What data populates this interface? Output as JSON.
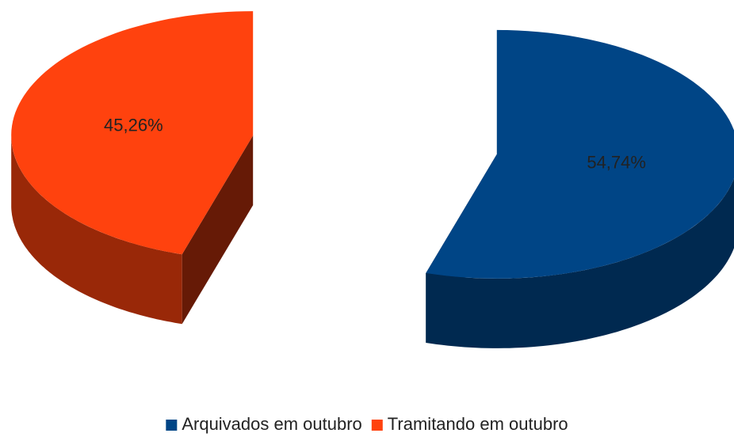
{
  "chart_data": {
    "type": "pie",
    "three_d": true,
    "exploded": true,
    "categories": [
      "Arquivados em outubro",
      "Tramitando em outubro"
    ],
    "values": [
      54.74,
      45.26
    ],
    "value_labels": [
      "54,74%",
      "45,26%"
    ],
    "colors": [
      "#004586",
      "#ff420e"
    ],
    "legend": "bottom"
  }
}
